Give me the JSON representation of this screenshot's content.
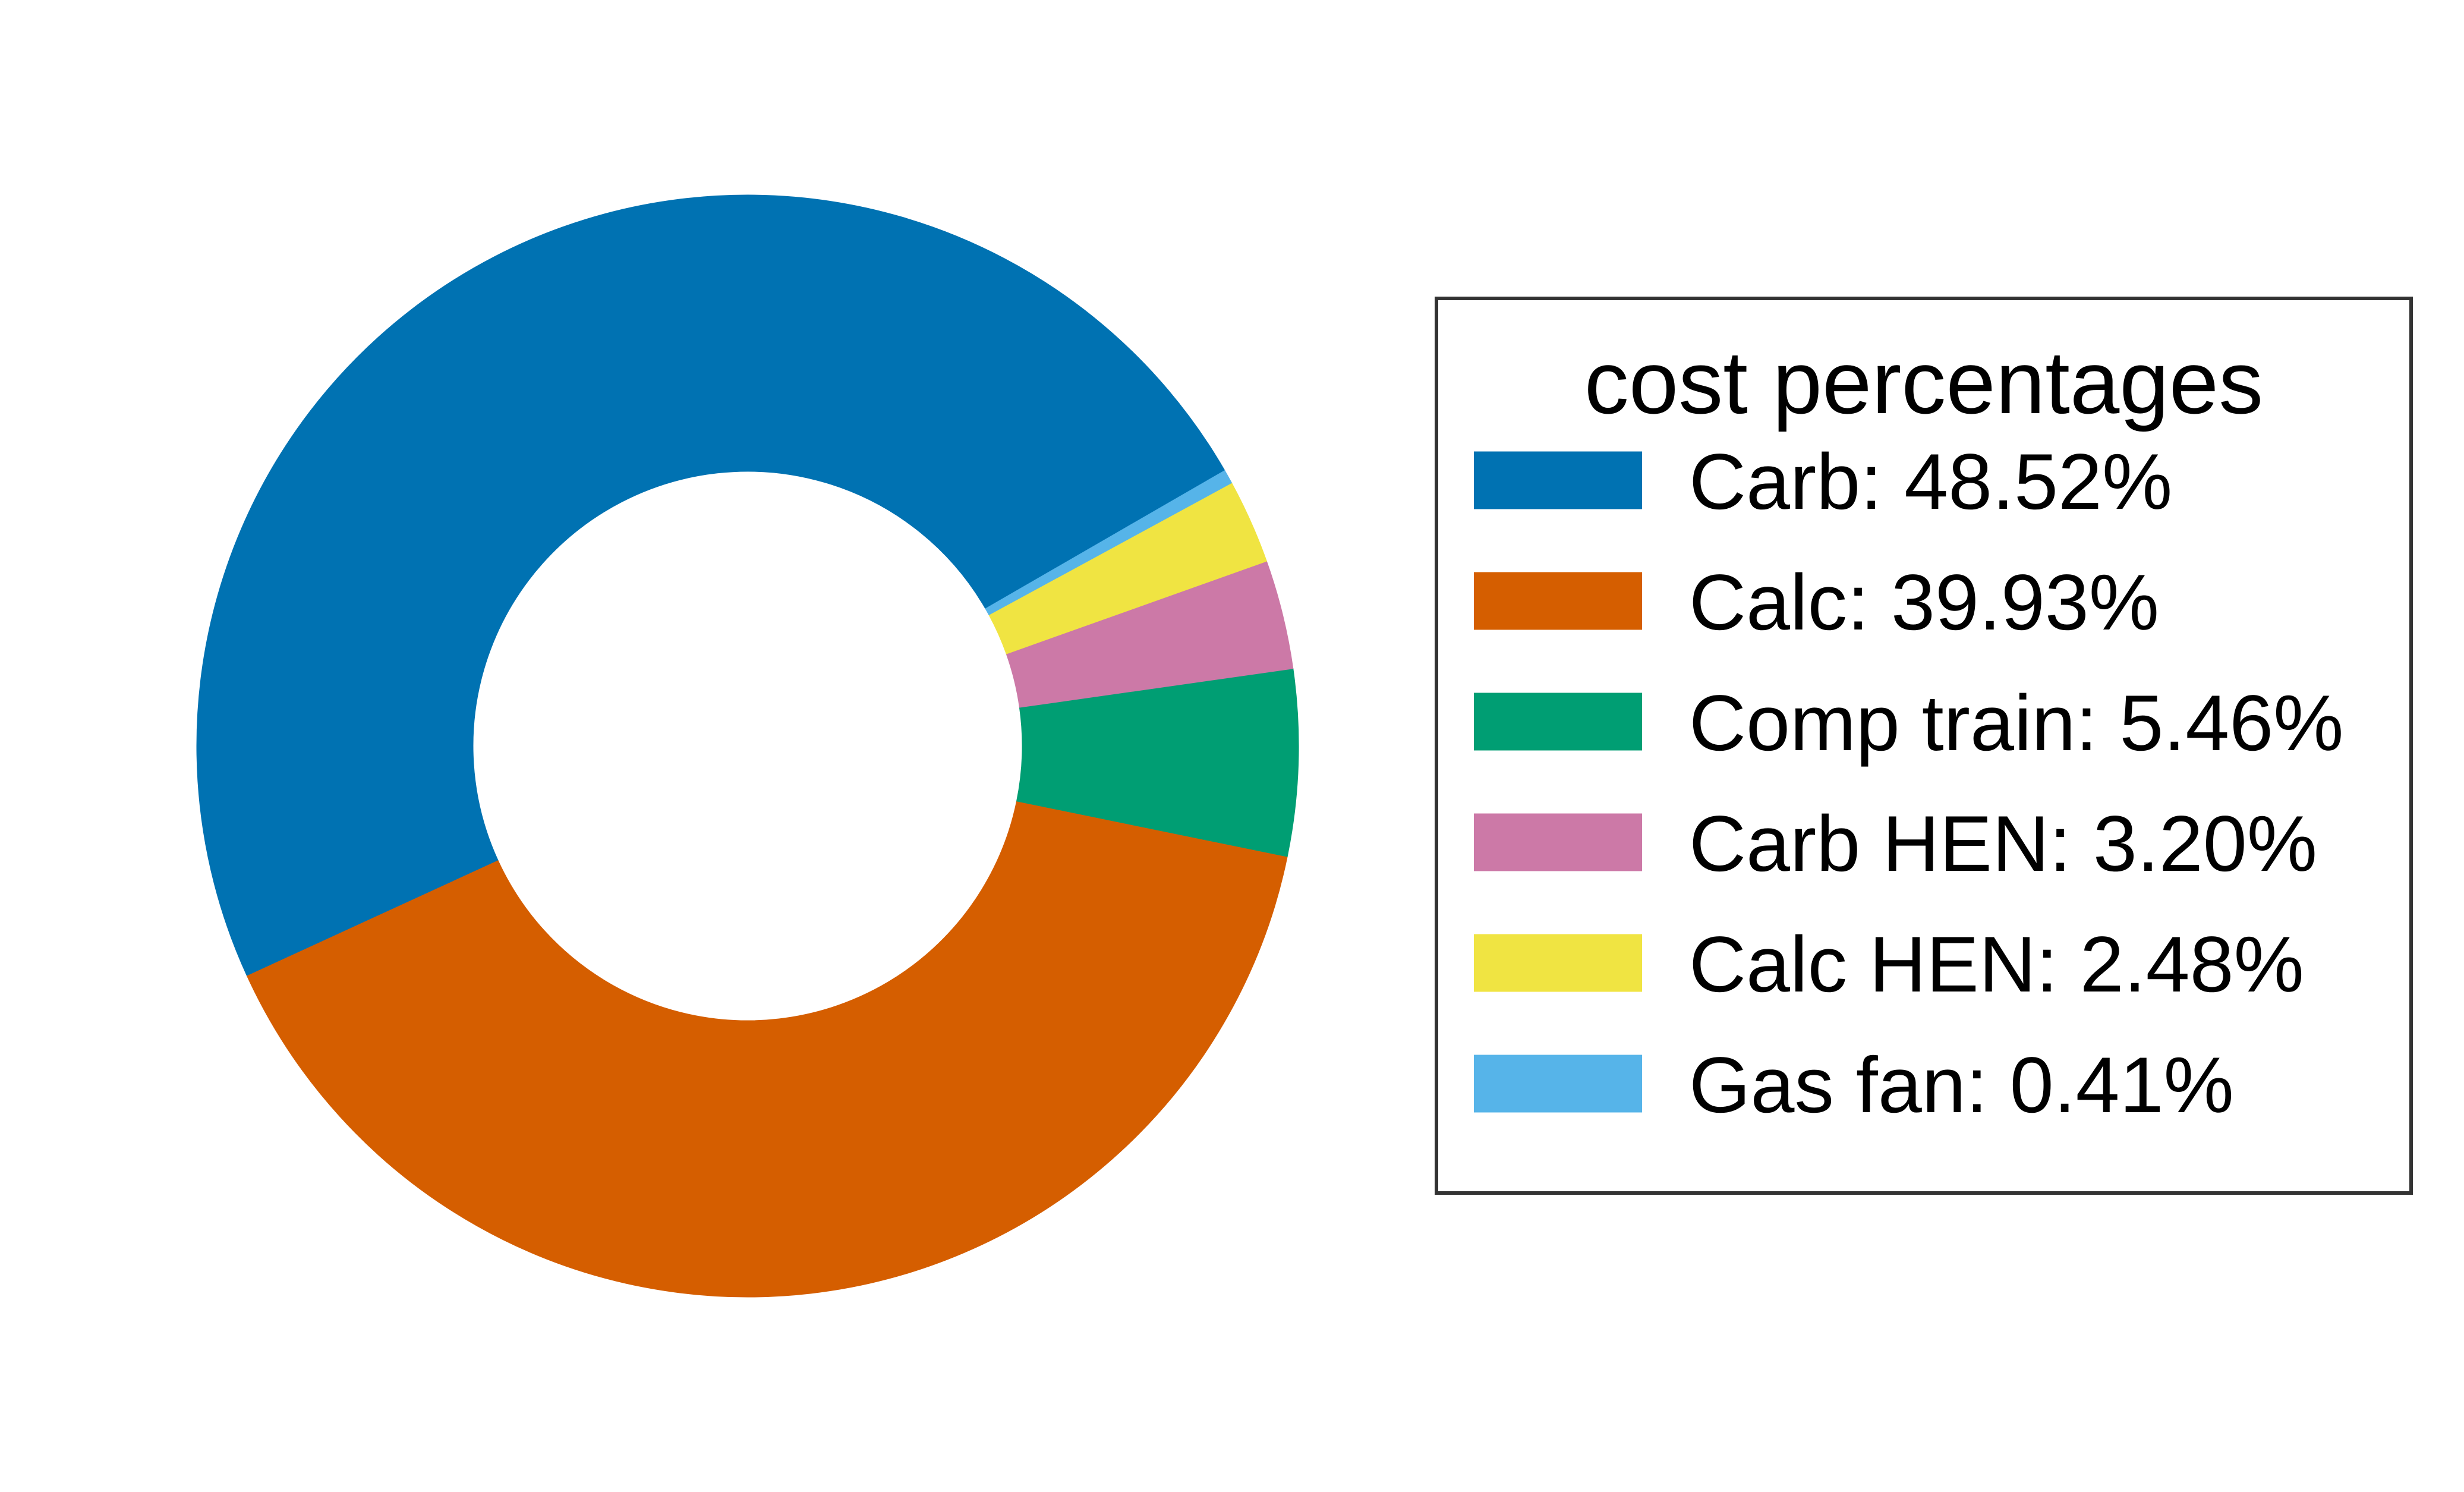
{
  "chart_data": {
    "type": "pie",
    "style": "donut",
    "slices": [
      {
        "label": "Carb: 48.52%",
        "value": 48.52,
        "color": "#0072b2"
      },
      {
        "label": "Calc: 39.93%",
        "value": 39.93,
        "color": "#d55e00"
      },
      {
        "label": "Comp train: 5.46%",
        "value": 5.46,
        "color": "#009e73"
      },
      {
        "label": "Carb HEN: 3.20%",
        "value": 3.2,
        "color": "#cc79a7"
      },
      {
        "label": "Calc HEN: 2.48%",
        "value": 2.48,
        "color": "#f0e442"
      },
      {
        "label": "Gas fan: 0.41%",
        "value": 0.41,
        "color": "#56b4e9"
      }
    ],
    "legend": {
      "title": "cost percentages",
      "placement": "right"
    }
  }
}
